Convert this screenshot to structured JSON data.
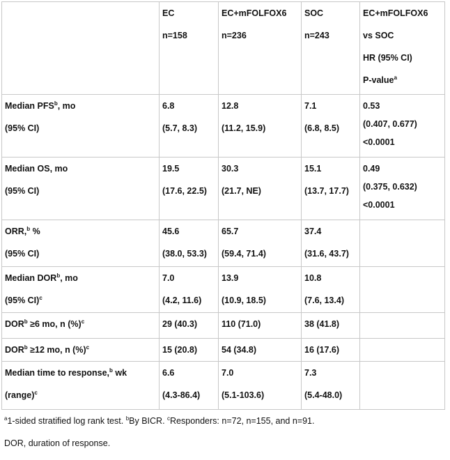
{
  "table": {
    "header": [
      [],
      [
        [
          "EC"
        ],
        [
          "n=158"
        ]
      ],
      [
        [
          "EC+mFOLFOX6"
        ],
        [
          "n=236"
        ]
      ],
      [
        [
          "SOC"
        ],
        [
          "n=243"
        ]
      ],
      [
        [
          "EC+mFOLFOX6"
        ],
        [
          "vs SOC"
        ],
        [
          "HR (95% CI)"
        ],
        [
          "P-value",
          {
            "sup": "a"
          }
        ]
      ]
    ],
    "rows": [
      [
        [
          [
            "Median PFS",
            {
              "sup": "b"
            },
            ", mo"
          ],
          [
            "(95% CI)"
          ]
        ],
        [
          [
            "6.8"
          ],
          [
            "(5.7, 8.3)"
          ]
        ],
        [
          [
            "12.8"
          ],
          [
            "(11.2, 15.9)"
          ]
        ],
        [
          [
            "7.1"
          ],
          [
            "(6.8, 8.5)"
          ]
        ],
        [
          [
            "0.53"
          ],
          [
            "(0.407, 0.677)"
          ],
          [
            "<0.0001"
          ]
        ]
      ],
      [
        [
          [
            "Median OS, mo"
          ],
          [
            "(95% CI)"
          ]
        ],
        [
          [
            "19.5"
          ],
          [
            "(17.6, 22.5)"
          ]
        ],
        [
          [
            "30.3"
          ],
          [
            "(21.7, NE)"
          ]
        ],
        [
          [
            "15.1"
          ],
          [
            "(13.7, 17.7)"
          ]
        ],
        [
          [
            "0.49"
          ],
          [
            "(0.375, 0.632)"
          ],
          [
            "<0.0001"
          ]
        ]
      ],
      [
        [
          [
            "ORR,",
            {
              "sup": "b"
            },
            " %"
          ],
          [
            "(95% CI)"
          ]
        ],
        [
          [
            "45.6"
          ],
          [
            "(38.0, 53.3)"
          ]
        ],
        [
          [
            "65.7"
          ],
          [
            "(59.4, 71.4)"
          ]
        ],
        [
          [
            "37.4"
          ],
          [
            "(31.6, 43.7)"
          ]
        ],
        []
      ],
      [
        [
          [
            "Median DOR",
            {
              "sup": "b"
            },
            ", mo"
          ],
          [
            "(95% CI)",
            {
              "sup": "c"
            }
          ]
        ],
        [
          [
            "7.0"
          ],
          [
            "(4.2, 11.6)"
          ]
        ],
        [
          [
            "13.9"
          ],
          [
            "(10.9, 18.5)"
          ]
        ],
        [
          [
            "10.8"
          ],
          [
            "(7.6, 13.4)"
          ]
        ],
        []
      ],
      [
        [
          [
            "DOR",
            {
              "sup": "b"
            },
            " ≥6 mo, n (%)",
            {
              "sup": "c"
            }
          ]
        ],
        [
          [
            "29 (40.3)"
          ]
        ],
        [
          [
            "110 (71.0)"
          ]
        ],
        [
          [
            "38 (41.8)"
          ]
        ],
        []
      ],
      [
        [
          [
            "DOR",
            {
              "sup": "b"
            },
            " ≥12 mo, n (%)",
            {
              "sup": "c"
            }
          ]
        ],
        [
          [
            "15 (20.8)"
          ]
        ],
        [
          [
            "54 (34.8)"
          ]
        ],
        [
          [
            "16 (17.6)"
          ]
        ],
        []
      ],
      [
        [
          [
            "Median time to response,",
            {
              "sup": "b"
            },
            " wk"
          ],
          [
            "(range)",
            {
              "sup": "c"
            }
          ]
        ],
        [
          [
            "6.6"
          ],
          [
            "(4.3-86.4)"
          ]
        ],
        [
          [
            "7.0"
          ],
          [
            "(5.1-103.6)"
          ]
        ],
        [
          [
            "7.3"
          ],
          [
            "(5.4-48.0)"
          ]
        ],
        []
      ]
    ]
  },
  "footnotes": [
    [
      {
        "sup": "a"
      },
      "1-sided stratified log rank test. ",
      {
        "sup": "b"
      },
      "By BICR. ",
      {
        "sup": "c"
      },
      "Responders: n=72, n=155, and n=91."
    ],
    [
      "DOR, duration of response."
    ]
  ]
}
